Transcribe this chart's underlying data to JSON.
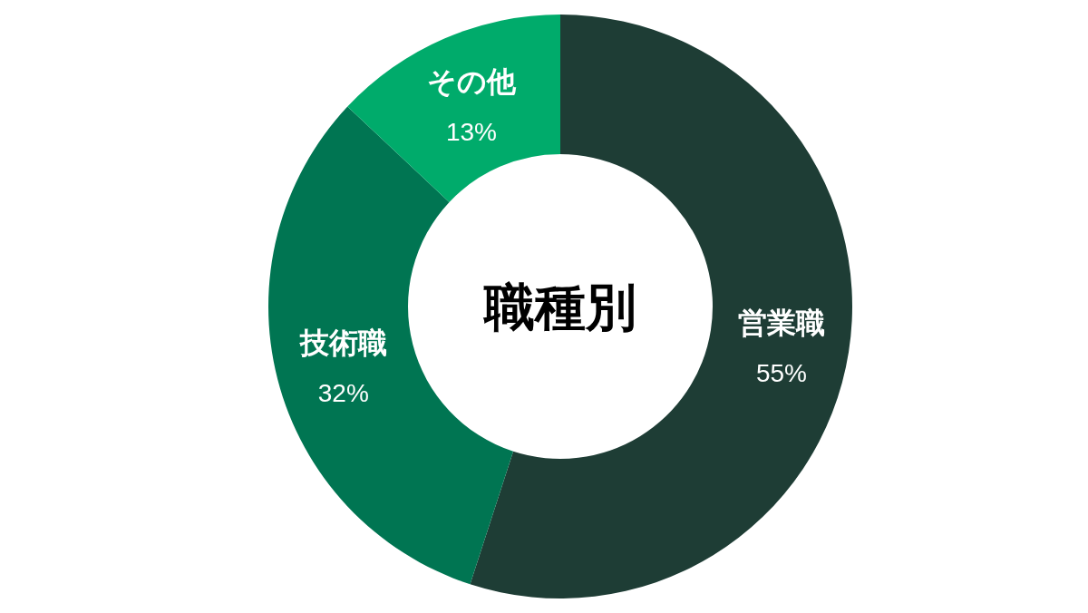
{
  "chart_data": {
    "type": "donut",
    "title": "職種別",
    "categories": [
      "営業職",
      "技術職",
      "その他"
    ],
    "values": [
      55,
      32,
      13
    ],
    "value_labels": [
      "55%",
      "32%",
      "13%"
    ],
    "colors": [
      "#1e3d35",
      "#007552",
      "#00ab6b"
    ]
  }
}
